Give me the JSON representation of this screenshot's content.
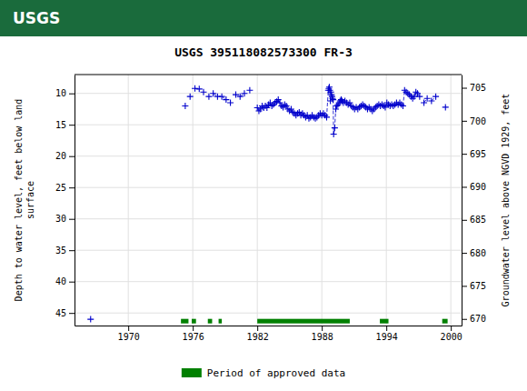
{
  "chart_data": {
    "type": "scatter",
    "title": "USGS 395118082573300 FR-3",
    "annotations": [
      {
        "text": "USGS",
        "color": "#1a6b3c"
      }
    ],
    "ylabel": "Depth to water level, feet below land\nsurface",
    "y2label": "Groundwater level above NGVD 1929, feet",
    "xlim": [
      1965,
      2001
    ],
    "ylim": [
      47,
      7
    ],
    "y2lim": [
      669,
      707
    ],
    "xticks": [
      1970,
      1976,
      1982,
      1988,
      1994,
      2000
    ],
    "yticks": [
      10,
      15,
      20,
      25,
      30,
      35,
      40,
      45
    ],
    "y2ticks": [
      670,
      675,
      680,
      685,
      690,
      695,
      700,
      705
    ],
    "grid": true,
    "legend": "bottom",
    "x": [
      1966.5,
      1975.3,
      1975.75,
      1976.2,
      1976.6,
      1977.0,
      1977.5,
      1977.9,
      1978.3,
      1978.7,
      1979.1,
      1979.5,
      1980.0,
      1980.4,
      1980.8,
      1981.3,
      1982.0,
      1982.15,
      1982.3,
      1982.45,
      1982.6,
      1982.75,
      1982.9,
      1983.05,
      1983.2,
      1983.35,
      1983.5,
      1983.65,
      1983.8,
      1983.95,
      1984.1,
      1984.25,
      1984.4,
      1984.55,
      1984.7,
      1984.85,
      1985.0,
      1985.15,
      1985.3,
      1985.45,
      1985.6,
      1985.75,
      1985.9,
      1986.05,
      1986.2,
      1986.35,
      1986.5,
      1986.65,
      1986.8,
      1986.95,
      1987.1,
      1987.25,
      1987.4,
      1987.55,
      1987.7,
      1987.85,
      1988.0,
      1988.15,
      1988.3,
      1988.45,
      1988.6,
      1988.65,
      1988.7,
      1988.75,
      1988.8,
      1988.85,
      1988.9,
      1988.95,
      1989.0,
      1989.05,
      1989.1,
      1989.2,
      1989.3,
      1989.4,
      1989.5,
      1989.6,
      1989.7,
      1989.8,
      1989.9,
      1990.0,
      1990.15,
      1990.3,
      1990.45,
      1990.6,
      1990.75,
      1990.9,
      1991.05,
      1991.2,
      1991.35,
      1991.5,
      1991.65,
      1991.8,
      1991.95,
      1992.1,
      1992.25,
      1992.4,
      1992.55,
      1992.7,
      1992.85,
      1993.0,
      1993.15,
      1993.3,
      1993.45,
      1993.6,
      1993.75,
      1993.9,
      1994.05,
      1994.2,
      1994.35,
      1994.5,
      1994.65,
      1994.8,
      1994.95,
      1995.1,
      1995.25,
      1995.4,
      1995.55,
      1995.7,
      1995.85,
      1996.0,
      1996.15,
      1996.3,
      1996.45,
      1996.6,
      1996.75,
      1996.9,
      1997.1,
      1997.5,
      1997.8,
      1998.2,
      1998.6,
      1999.5
    ],
    "series": [
      {
        "color": "#0000cc",
        "marker": "+",
        "line_style": "dashed",
        "values": [
          46.0,
          12.0,
          10.5,
          9.2,
          9.3,
          9.8,
          10.5,
          10.0,
          10.5,
          10.5,
          11.0,
          11.5,
          10.2,
          10.5,
          10.0,
          9.5,
          12.3,
          12.8,
          12.5,
          12.0,
          12.3,
          12.0,
          12.3,
          11.8,
          11.5,
          12.0,
          11.8,
          11.5,
          11.3,
          11.0,
          11.5,
          12.0,
          12.2,
          11.8,
          12.0,
          12.5,
          12.8,
          12.5,
          13.0,
          13.2,
          13.5,
          13.2,
          13.0,
          13.5,
          13.2,
          13.5,
          13.8,
          13.5,
          14.0,
          13.8,
          13.5,
          13.8,
          14.0,
          13.8,
          13.5,
          13.2,
          13.5,
          13.2,
          13.5,
          13.8,
          9.5,
          9.2,
          9.0,
          9.5,
          11.2,
          9.8,
          10.2,
          10.5,
          10.8,
          11.0,
          16.5,
          15.5,
          12.5,
          12.0,
          11.8,
          11.5,
          11.2,
          11.0,
          11.2,
          11.5,
          11.2,
          11.5,
          11.8,
          11.5,
          12.0,
          12.2,
          12.5,
          12.2,
          12.5,
          12.2,
          12.0,
          11.8,
          12.0,
          12.2,
          12.5,
          12.2,
          12.5,
          12.8,
          12.5,
          12.2,
          12.0,
          11.8,
          12.0,
          11.8,
          12.0,
          12.2,
          11.5,
          11.8,
          12.0,
          11.8,
          12.0,
          11.8,
          11.5,
          11.8,
          11.5,
          11.8,
          12.0,
          9.5,
          9.8,
          10.0,
          10.2,
          10.5,
          10.8,
          10.5,
          9.8,
          10.0,
          10.5,
          11.5,
          10.8,
          11.2,
          10.5,
          12.2
        ]
      }
    ],
    "periods": {
      "name": "Period of approved data",
      "color": "#008000",
      "y": 46.3,
      "starts": [
        1974.9,
        1975.9,
        1977.4,
        1978.4,
        1982.0,
        1993.4,
        1999.2
      ],
      "ends": [
        1975.6,
        1976.3,
        1977.8,
        1978.7,
        1990.6,
        1994.2,
        1999.7
      ]
    }
  }
}
